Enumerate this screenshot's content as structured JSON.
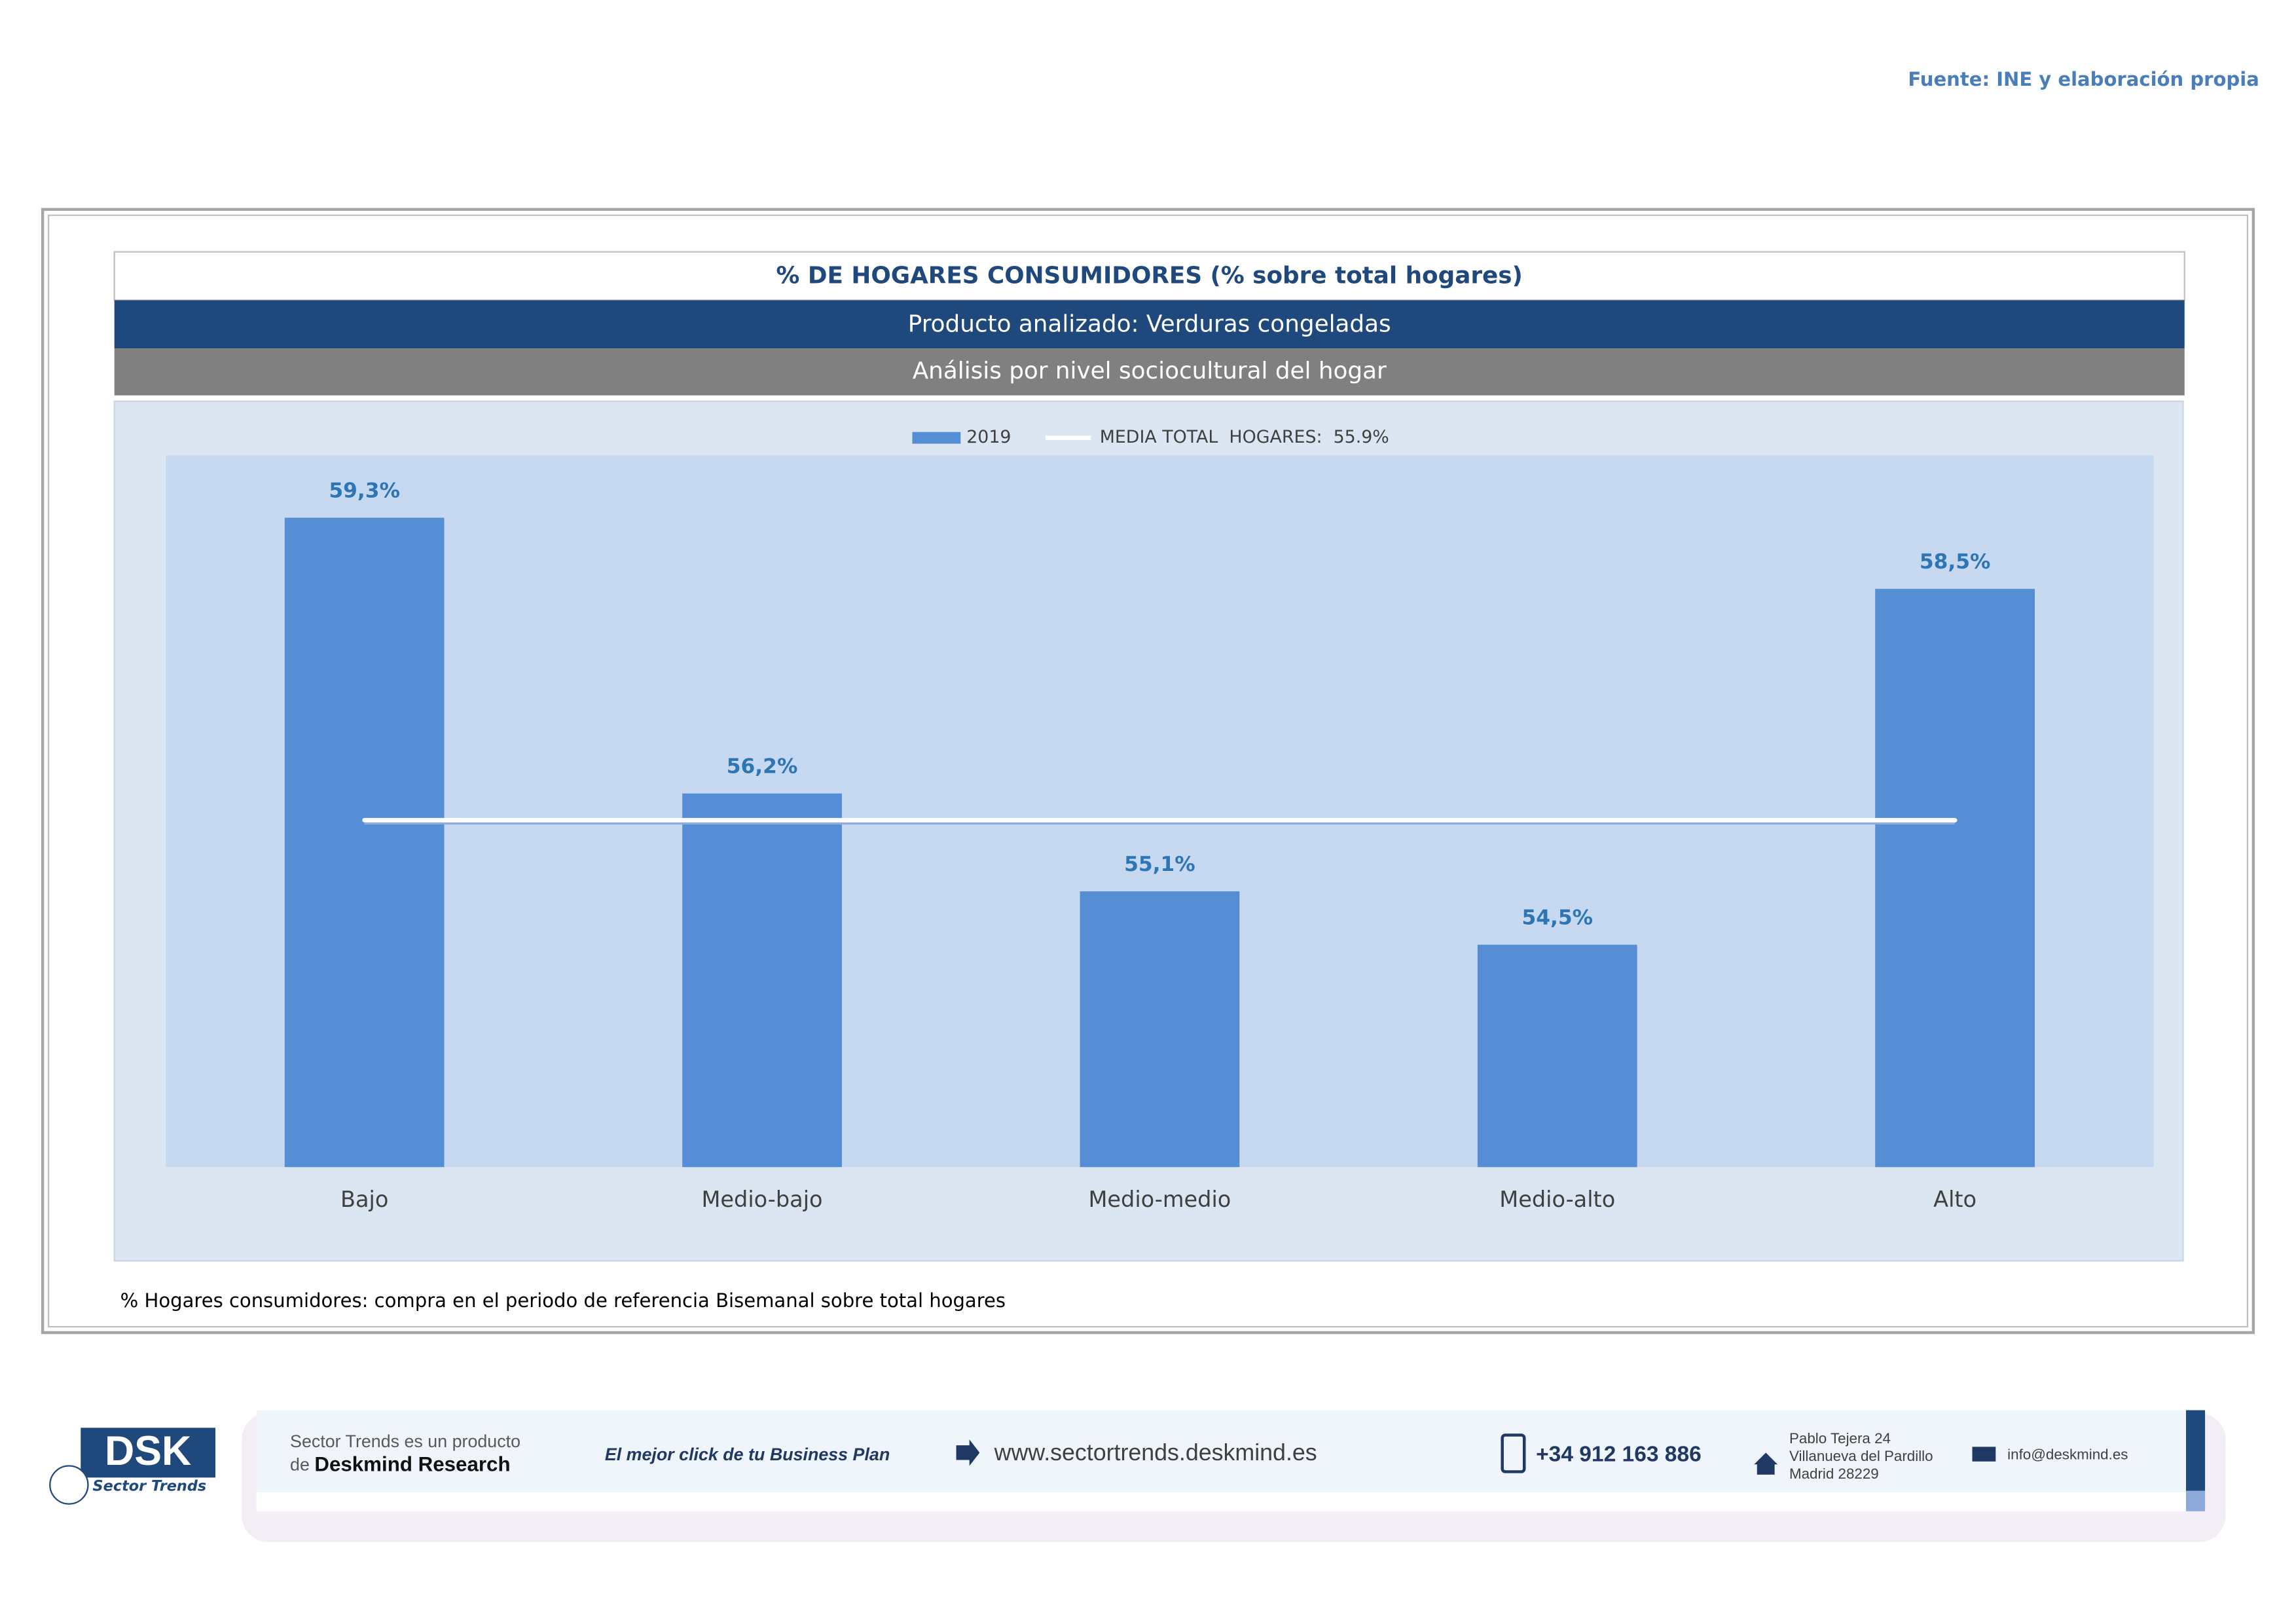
{
  "page": {
    "source": "Fuente: INE y elaboración propia",
    "footer": {
      "logo": "DSK",
      "logo_sub": "Sector Trends",
      "product_line_1": "Sector Trends es un producto",
      "product_line_2_prefix": "de",
      "product_line_2_brand": "Deskmind Research",
      "slogan": "El mejor click de tu Business Plan",
      "website": "www.sectortrends.deskmind.es",
      "phone": "+34 912 163 886",
      "address": [
        "Pablo Tejera 24",
        "Villanueva del Pardillo",
        "Madrid 28229"
      ],
      "email": "info@deskmind.es"
    }
  },
  "chart_data": {
    "type": "bar",
    "title": "% DE HOGARES CONSUMIDORES (% sobre total hogares)",
    "subtitle": "Producto analizado: Verduras congeladas",
    "subtitle_2": "Análisis por nivel sociocultural del hogar",
    "note": "% Hogares consumidores: compra en el periodo de referencia Bisemanal sobre total hogares",
    "categories": [
      "Bajo",
      "Medio-bajo",
      "Medio-medio",
      "Medio-alto",
      "Alto"
    ],
    "series": [
      {
        "name": "2019",
        "color": "#558ed5",
        "values": [
          59.3,
          56.2,
          55.1,
          54.5,
          58.5
        ],
        "value_labels": [
          "59,3%",
          "56,2%",
          "55,1%",
          "54,5%",
          "58,5%"
        ]
      }
    ],
    "reference_line": {
      "name": "MEDIA TOTAL  HOGARES:  55.9%",
      "value": 55.9,
      "color": "#ffffff"
    },
    "ylim": [
      52,
      60
    ],
    "grid": false
  }
}
